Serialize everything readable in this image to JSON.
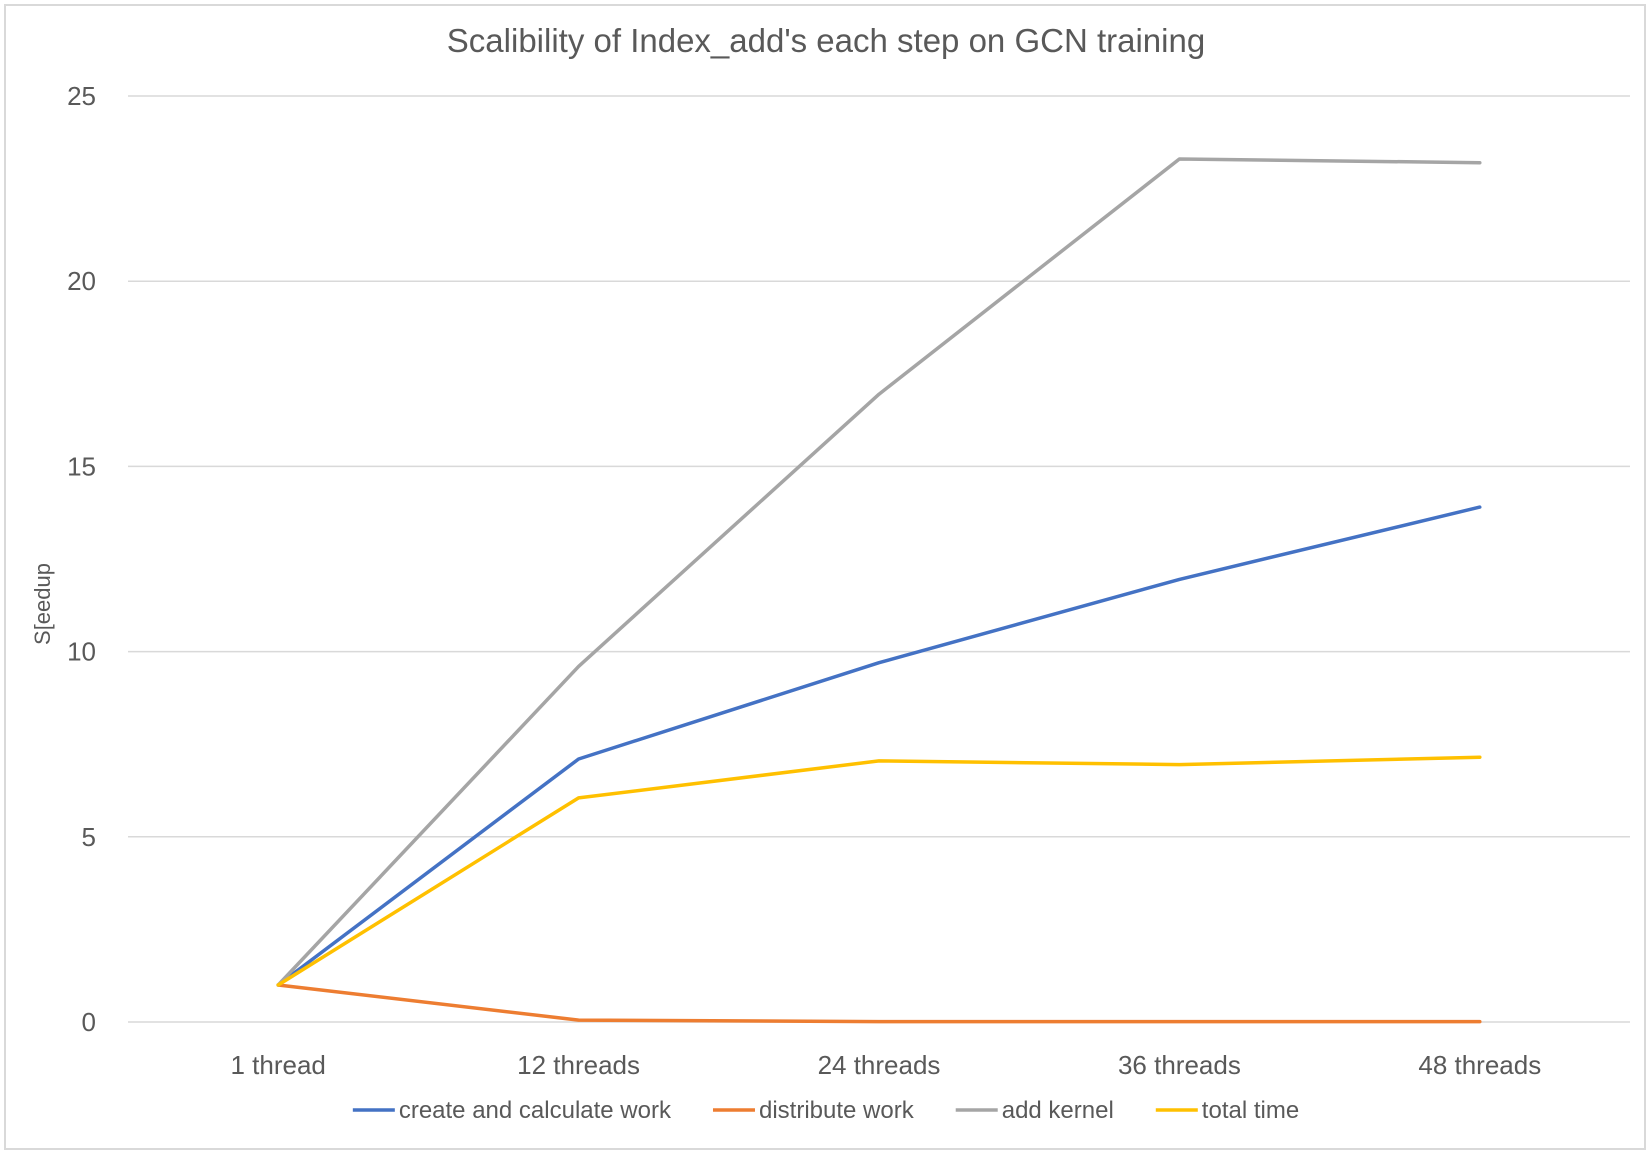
{
  "chart_data": {
    "type": "line",
    "title": "Scalibility of Index_add's each step on GCN training",
    "xlabel": "",
    "ylabel": "S[eedup",
    "categories": [
      "1 thread",
      "12 threads",
      "24 threads",
      "36 threads",
      "48 threads"
    ],
    "ylim": [
      0,
      25
    ],
    "yticks": [
      0,
      5,
      10,
      15,
      20,
      25
    ],
    "grid": true,
    "legend_position": "bottom",
    "series": [
      {
        "name": "create and calculate work",
        "color": "#4472C4",
        "values": [
          1,
          7.1,
          9.7,
          11.95,
          13.9
        ]
      },
      {
        "name": "distribute work",
        "color": "#ED7D31",
        "values": [
          1,
          0.05,
          0.01,
          0.01,
          0.01
        ]
      },
      {
        "name": "add kernel",
        "color": "#A5A5A5",
        "values": [
          1,
          9.6,
          16.95,
          23.3,
          23.2
        ]
      },
      {
        "name": "total time",
        "color": "#FFC000",
        "values": [
          1,
          6.05,
          7.05,
          6.95,
          7.15
        ]
      }
    ]
  }
}
